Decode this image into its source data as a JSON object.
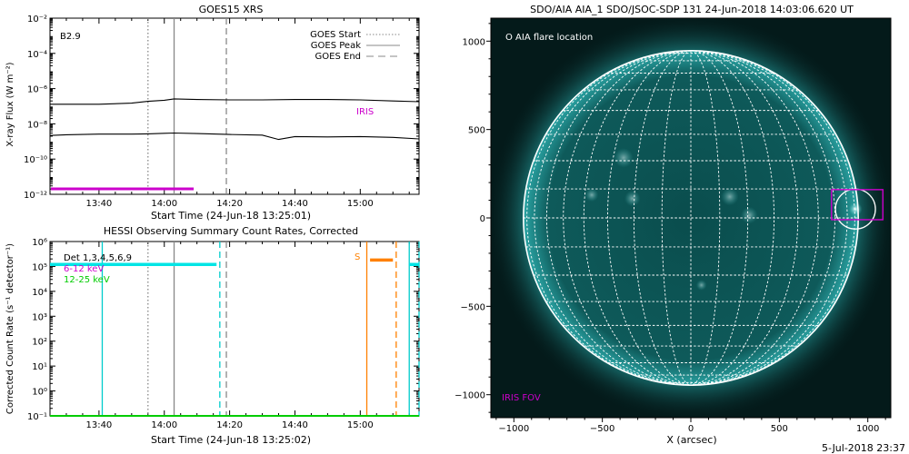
{
  "footer_date": "5-Jul-2018 23:37",
  "chart_data": [
    {
      "type": "line",
      "title": "GOES15 XRS",
      "xlabel": "Start Time (24-Jun-18 13:25:01)",
      "ylabel": "X-ray Flux (W m⁻²)",
      "yscale": "log",
      "ylim": [
        1e-12,
        0.01
      ],
      "xlim": [
        "13:25",
        "15:18"
      ],
      "xticks": [
        "13:40",
        "14:00",
        "14:20",
        "14:40",
        "15:00"
      ],
      "yticks": [
        "10⁻¹²",
        "10⁻¹⁰",
        "10⁻⁸",
        "10⁻⁶",
        "10⁻⁴",
        "10⁻²"
      ],
      "flare_class": "B2.9",
      "legend": {
        "placement": "top-right",
        "entries": [
          "GOES Start",
          "GOES Peak",
          "GOES End"
        ]
      },
      "vertical_markers": [
        {
          "label": "GOES Start",
          "time": "13:55",
          "style": "dotted",
          "color": "#888888"
        },
        {
          "label": "GOES Peak",
          "time": "14:03",
          "style": "solid",
          "color": "#888888"
        },
        {
          "label": "GOES End",
          "time": "14:19",
          "style": "dashed",
          "color": "#888888"
        }
      ],
      "series": [
        {
          "color": "#000000",
          "x": [
            "13:25",
            "13:30",
            "13:40",
            "13:50",
            "13:55",
            "14:00",
            "14:03",
            "14:10",
            "14:20",
            "14:30",
            "14:40",
            "14:50",
            "15:00",
            "15:10",
            "15:18"
          ],
          "y": [
            1.3e-07,
            1.3e-07,
            1.3e-07,
            1.5e-07,
            1.9e-07,
            2.2e-07,
            2.6e-07,
            2.4e-07,
            2.3e-07,
            2.3e-07,
            2.4e-07,
            2.4e-07,
            2.3e-07,
            2e-07,
            1.8e-07
          ]
        },
        {
          "color": "#000000",
          "x": [
            "13:25",
            "13:30",
            "13:40",
            "13:50",
            "13:55",
            "14:00",
            "14:03",
            "14:10",
            "14:20",
            "14:30",
            "14:35",
            "14:40",
            "14:50",
            "15:00",
            "15:10",
            "15:18"
          ],
          "y": [
            2.2e-09,
            2.4e-09,
            2.6e-09,
            2.6e-09,
            2.7e-09,
            2.9e-09,
            3e-09,
            2.8e-09,
            2.5e-09,
            2.3e-09,
            1.3e-09,
            1.9e-09,
            1.8e-09,
            1.9e-09,
            1.7e-09,
            1.4e-09
          ]
        }
      ],
      "iris": {
        "label": "IRIS",
        "start": "13:25",
        "end": "14:09",
        "color": "#cc00cc"
      }
    },
    {
      "type": "line",
      "title": "HESSI Observing Summary Count Rates, Corrected",
      "xlabel": "Start Time (24-Jun-18 13:25:02)",
      "ylabel": "Corrected Count Rate (s⁻¹ detector⁻¹)",
      "yscale": "log",
      "ylim": [
        0.1,
        1000000.0
      ],
      "xlim": [
        "13:25",
        "15:18"
      ],
      "xticks": [
        "13:40",
        "14:00",
        "14:20",
        "14:40",
        "15:00"
      ],
      "yticks": [
        "10⁻¹",
        "10⁰",
        "10¹",
        "10²",
        "10³",
        "10⁴",
        "10⁵",
        "10⁶"
      ],
      "legend": {
        "placement": "top-left",
        "entries": [
          {
            "label": "Det 1,3,4,5,6,9",
            "color": "#000000"
          },
          {
            "label": "6-12 keV",
            "color": "#cc00cc"
          },
          {
            "label": "12-25 keV",
            "color": "#00cc00"
          }
        ]
      },
      "vertical_markers": [
        {
          "time": "13:41",
          "style": "solid",
          "color": "#00cccc"
        },
        {
          "time": "13:55",
          "style": "dotted",
          "color": "#888888"
        },
        {
          "time": "14:03",
          "style": "solid",
          "color": "#888888"
        },
        {
          "time": "14:17",
          "style": "dashed",
          "color": "#00cccc"
        },
        {
          "time": "14:19",
          "style": "dashed",
          "color": "#888888"
        },
        {
          "time": "15:02",
          "style": "solid",
          "color": "#ff8000"
        },
        {
          "time": "15:11",
          "style": "dashed",
          "color": "#ff8000"
        },
        {
          "time": "15:15",
          "style": "solid",
          "color": "#00cccc"
        },
        {
          "time": "15:18",
          "style": "dashed",
          "color": "#00cccc"
        }
      ],
      "segments": [
        {
          "start": "13:25",
          "end": "14:16",
          "value": 120000,
          "color": "#00e5e5"
        },
        {
          "start": "15:15",
          "end": "15:18",
          "value": 120000,
          "color": "#00e5e5"
        },
        {
          "start": "15:03",
          "end": "15:10",
          "value": 180000,
          "color": "#ff8000",
          "label": "S"
        }
      ],
      "baseline": {
        "value": 0.1,
        "color": "#00cc00"
      }
    },
    {
      "type": "image",
      "title": "SDO/AIA AIA_1 SDO/JSOC-SDP 131 24-Jun-2018 14:03:06.620 UT",
      "xlabel": "X (arcsec)",
      "xlim": [
        -1130,
        1130
      ],
      "ylim": [
        -1130,
        1130
      ],
      "xticks": [
        "−1000",
        "−500",
        "0",
        "500",
        "1000"
      ],
      "yticks": [
        "−1000",
        "−500",
        "0",
        "500",
        "1000"
      ],
      "legend_text": "O AIA flare location",
      "iris_fov_label": "IRIS FOV",
      "solar_radius_arcsec": 946,
      "flare_location": {
        "x": 930,
        "y": 50
      },
      "iris_fov_box": {
        "x1": 795,
        "y1": -10,
        "x2": 1085,
        "y2": 160
      },
      "colors": {
        "background": "#041a1a",
        "disk": "#0a4d4d",
        "grid": "#ffffff",
        "iris": "#cc00cc"
      }
    }
  ]
}
